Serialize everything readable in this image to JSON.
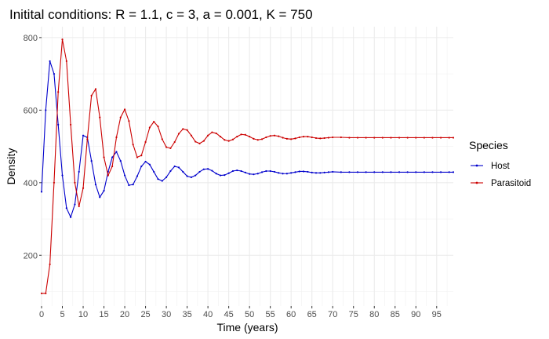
{
  "chart_data": {
    "type": "line",
    "title": "Initital conditions: R = 1.1, c = 3, a = 0.001, K = 750",
    "xlabel": "Time (years)",
    "ylabel": "Density",
    "xlim": [
      0,
      99
    ],
    "ylim": [
      60,
      830
    ],
    "x_ticks": [
      0,
      5,
      10,
      15,
      20,
      25,
      30,
      35,
      40,
      45,
      50,
      55,
      60,
      65,
      70,
      75,
      80,
      85,
      90,
      95
    ],
    "y_ticks": [
      200,
      400,
      600,
      800
    ],
    "grid": true,
    "legend": {
      "title": "Species",
      "position": "right"
    },
    "series": [
      {
        "name": "Host",
        "color": "#0000cc",
        "points": [
          [
            0,
            375
          ],
          [
            1,
            600
          ],
          [
            2,
            735
          ],
          [
            3,
            700
          ],
          [
            4,
            560
          ],
          [
            5,
            420
          ],
          [
            6,
            330
          ],
          [
            7,
            305
          ],
          [
            8,
            340
          ],
          [
            9,
            430
          ],
          [
            10,
            530
          ],
          [
            11,
            525
          ],
          [
            12,
            460
          ],
          [
            13,
            395
          ],
          [
            14,
            360
          ],
          [
            15,
            378
          ],
          [
            16,
            430
          ],
          [
            17,
            470
          ],
          [
            18,
            485
          ],
          [
            19,
            460
          ],
          [
            20,
            420
          ],
          [
            21,
            393
          ],
          [
            22,
            395
          ],
          [
            23,
            418
          ],
          [
            24,
            445
          ],
          [
            25,
            458
          ],
          [
            26,
            450
          ],
          [
            27,
            430
          ],
          [
            28,
            410
          ],
          [
            29,
            405
          ],
          [
            30,
            415
          ],
          [
            31,
            432
          ],
          [
            32,
            445
          ],
          [
            33,
            442
          ],
          [
            34,
            430
          ],
          [
            35,
            418
          ],
          [
            36,
            415
          ],
          [
            37,
            420
          ],
          [
            38,
            430
          ],
          [
            39,
            437
          ],
          [
            40,
            438
          ],
          [
            41,
            433
          ],
          [
            42,
            425
          ],
          [
            43,
            420
          ],
          [
            44,
            421
          ],
          [
            45,
            426
          ],
          [
            46,
            432
          ],
          [
            47,
            434
          ],
          [
            48,
            432
          ],
          [
            49,
            428
          ],
          [
            50,
            424
          ],
          [
            51,
            423
          ],
          [
            52,
            425
          ],
          [
            53,
            429
          ],
          [
            54,
            432
          ],
          [
            55,
            432
          ],
          [
            56,
            430
          ],
          [
            57,
            427
          ],
          [
            58,
            425
          ],
          [
            59,
            425
          ],
          [
            60,
            427
          ],
          [
            61,
            429
          ],
          [
            62,
            431
          ],
          [
            63,
            431
          ],
          [
            64,
            430
          ],
          [
            65,
            428
          ],
          [
            66,
            427
          ],
          [
            67,
            427
          ],
          [
            68,
            428
          ],
          [
            69,
            429
          ],
          [
            70,
            430
          ],
          [
            72,
            429
          ],
          [
            74,
            429
          ],
          [
            76,
            429
          ],
          [
            78,
            429
          ],
          [
            80,
            429
          ],
          [
            82,
            429
          ],
          [
            84,
            429
          ],
          [
            86,
            429
          ],
          [
            88,
            429
          ],
          [
            90,
            429
          ],
          [
            92,
            429
          ],
          [
            94,
            429
          ],
          [
            96,
            429
          ],
          [
            98,
            429
          ],
          [
            99,
            429
          ]
        ]
      },
      {
        "name": "Parasitoid",
        "color": "#cc0000",
        "points": [
          [
            0,
            95
          ],
          [
            1,
            95
          ],
          [
            2,
            175
          ],
          [
            3,
            400
          ],
          [
            4,
            650
          ],
          [
            5,
            795
          ],
          [
            6,
            735
          ],
          [
            7,
            560
          ],
          [
            8,
            400
          ],
          [
            9,
            335
          ],
          [
            10,
            385
          ],
          [
            11,
            520
          ],
          [
            12,
            640
          ],
          [
            13,
            658
          ],
          [
            14,
            580
          ],
          [
            15,
            470
          ],
          [
            16,
            420
          ],
          [
            17,
            445
          ],
          [
            18,
            525
          ],
          [
            19,
            580
          ],
          [
            20,
            602
          ],
          [
            21,
            570
          ],
          [
            22,
            505
          ],
          [
            23,
            470
          ],
          [
            24,
            475
          ],
          [
            25,
            512
          ],
          [
            26,
            552
          ],
          [
            27,
            568
          ],
          [
            28,
            555
          ],
          [
            29,
            520
          ],
          [
            30,
            498
          ],
          [
            31,
            495
          ],
          [
            32,
            512
          ],
          [
            33,
            535
          ],
          [
            34,
            548
          ],
          [
            35,
            545
          ],
          [
            36,
            530
          ],
          [
            37,
            513
          ],
          [
            38,
            508
          ],
          [
            39,
            515
          ],
          [
            40,
            530
          ],
          [
            41,
            539
          ],
          [
            42,
            536
          ],
          [
            43,
            527
          ],
          [
            44,
            518
          ],
          [
            45,
            515
          ],
          [
            46,
            519
          ],
          [
            47,
            527
          ],
          [
            48,
            533
          ],
          [
            49,
            532
          ],
          [
            50,
            527
          ],
          [
            51,
            521
          ],
          [
            52,
            518
          ],
          [
            53,
            520
          ],
          [
            54,
            525
          ],
          [
            55,
            529
          ],
          [
            56,
            530
          ],
          [
            57,
            528
          ],
          [
            58,
            524
          ],
          [
            59,
            521
          ],
          [
            60,
            520
          ],
          [
            61,
            522
          ],
          [
            62,
            525
          ],
          [
            63,
            527
          ],
          [
            64,
            527
          ],
          [
            65,
            525
          ],
          [
            66,
            523
          ],
          [
            67,
            522
          ],
          [
            68,
            523
          ],
          [
            69,
            524
          ],
          [
            70,
            525
          ],
          [
            72,
            525
          ],
          [
            74,
            524
          ],
          [
            76,
            524
          ],
          [
            78,
            524
          ],
          [
            80,
            524
          ],
          [
            82,
            524
          ],
          [
            84,
            524
          ],
          [
            86,
            524
          ],
          [
            88,
            524
          ],
          [
            90,
            524
          ],
          [
            92,
            524
          ],
          [
            94,
            524
          ],
          [
            96,
            524
          ],
          [
            98,
            524
          ],
          [
            99,
            524
          ]
        ]
      }
    ]
  }
}
